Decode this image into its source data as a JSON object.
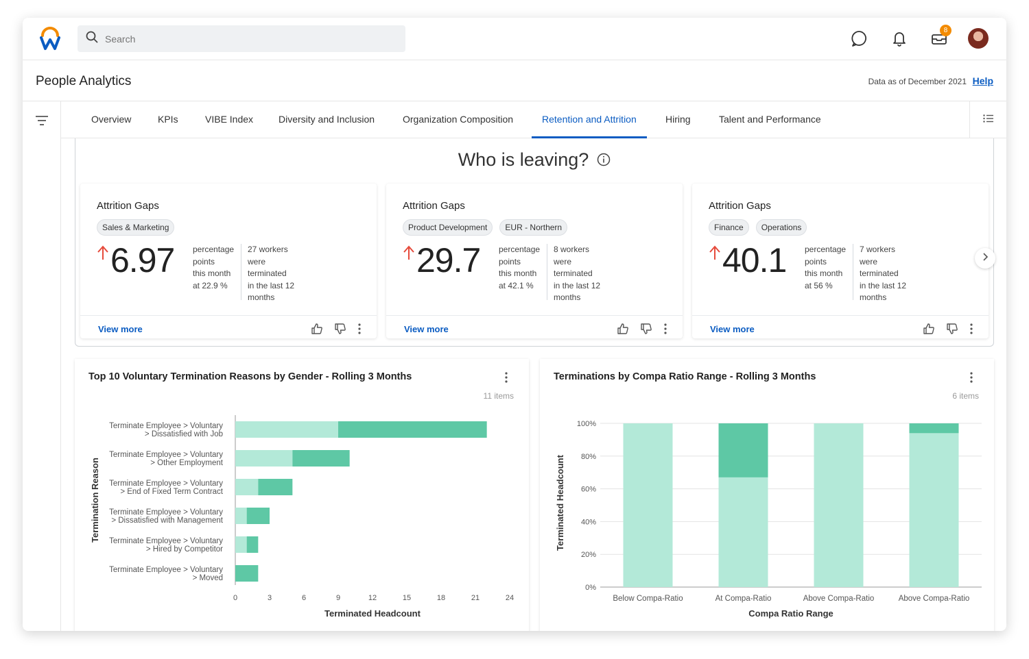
{
  "app": {
    "search_placeholder": "Search",
    "notification_badge": "8",
    "page_title": "People Analytics",
    "data_as_of": "Data as of December 2021",
    "help_label": "Help"
  },
  "tabs": [
    {
      "label": "Overview"
    },
    {
      "label": "KPIs"
    },
    {
      "label": "VIBE Index"
    },
    {
      "label": "Diversity and Inclusion"
    },
    {
      "label": "Organization Composition"
    },
    {
      "label": "Retention and Attrition",
      "active": true
    },
    {
      "label": "Hiring"
    },
    {
      "label": "Talent and Performance"
    }
  ],
  "section": {
    "title": "Who is leaving?"
  },
  "cards": [
    {
      "title": "Attrition Gaps",
      "chips": [
        "Sales & Marketing"
      ],
      "value": "6.97",
      "desc1": [
        "percentage",
        "points",
        "this month",
        "at 22.9 %"
      ],
      "desc2": [
        "27 workers",
        "were",
        "terminated",
        "in the last 12",
        "months"
      ],
      "view_more": "View more"
    },
    {
      "title": "Attrition Gaps",
      "chips": [
        "Product Development",
        "EUR - Northern"
      ],
      "value": "29.7",
      "desc1": [
        "percentage",
        "points",
        "this month",
        "at 42.1 %"
      ],
      "desc2": [
        "8 workers",
        "were",
        "terminated",
        "in the last 12",
        "months"
      ],
      "view_more": "View more"
    },
    {
      "title": "Attrition Gaps",
      "chips": [
        "Finance",
        "Operations"
      ],
      "value": "40.1",
      "desc1": [
        "percentage",
        "points",
        "this month",
        "at 56 %"
      ],
      "desc2": [
        "7 workers",
        "were",
        "terminated",
        "in the last 12",
        "months"
      ],
      "view_more": "View more"
    }
  ],
  "panels": {
    "left": {
      "title": "Top 10 Voluntary Termination Reasons by Gender - Rolling 3 Months",
      "count": "11 items"
    },
    "right": {
      "title": "Terminations by Compa Ratio Range - Rolling 3 Months",
      "count": "6 items"
    }
  },
  "colors": {
    "accent": "#0b5cc2",
    "bar_light": "#b3e9d8",
    "bar_dark": "#5ec8a5",
    "arrow_up": "#e64a3b"
  },
  "chart_data": [
    {
      "type": "bar",
      "orientation": "horizontal",
      "stacked": true,
      "categories": [
        [
          "Terminate Employee > Voluntary",
          "> Dissatisfied with Job"
        ],
        [
          "Terminate Employee > Voluntary",
          "> Other Employment"
        ],
        [
          "Terminate Employee > Voluntary",
          "> End of Fixed Term Contract"
        ],
        [
          "Terminate Employee > Voluntary",
          "> Dissatisfied with Management"
        ],
        [
          "Terminate Employee > Voluntary",
          "> Hired by Competitor"
        ],
        [
          "Terminate Employee > Voluntary",
          "> Moved"
        ]
      ],
      "series": [
        {
          "values": [
            9,
            5,
            2,
            1,
            1,
            0
          ],
          "color": "#b3e9d8"
        },
        {
          "values": [
            13,
            5,
            3,
            2,
            1,
            2
          ],
          "color": "#5ec8a5"
        }
      ],
      "xlabel": "Terminated Headcount",
      "ylabel": "Termination Reason",
      "xlim": [
        0,
        24
      ],
      "xticks": [
        0,
        3,
        6,
        9,
        12,
        15,
        18,
        21,
        24
      ],
      "grid": false
    },
    {
      "type": "bar",
      "stacked": true,
      "percent": true,
      "categories": [
        "Below Compa-Ratio",
        "At Compa-Ratio",
        "Above Compa-Ratio",
        "Above Compa-Ratio"
      ],
      "series": [
        {
          "values": [
            100,
            67,
            100,
            94
          ],
          "color": "#b3e9d8"
        },
        {
          "values": [
            0,
            33,
            0,
            6
          ],
          "color": "#5ec8a5"
        }
      ],
      "xlabel": "Compa Ratio Range",
      "ylabel": "Terminated Headcount",
      "ylim": [
        0,
        100
      ],
      "yticks": [
        "0%",
        "20%",
        "40%",
        "60%",
        "80%",
        "100%"
      ],
      "grid": true
    }
  ]
}
